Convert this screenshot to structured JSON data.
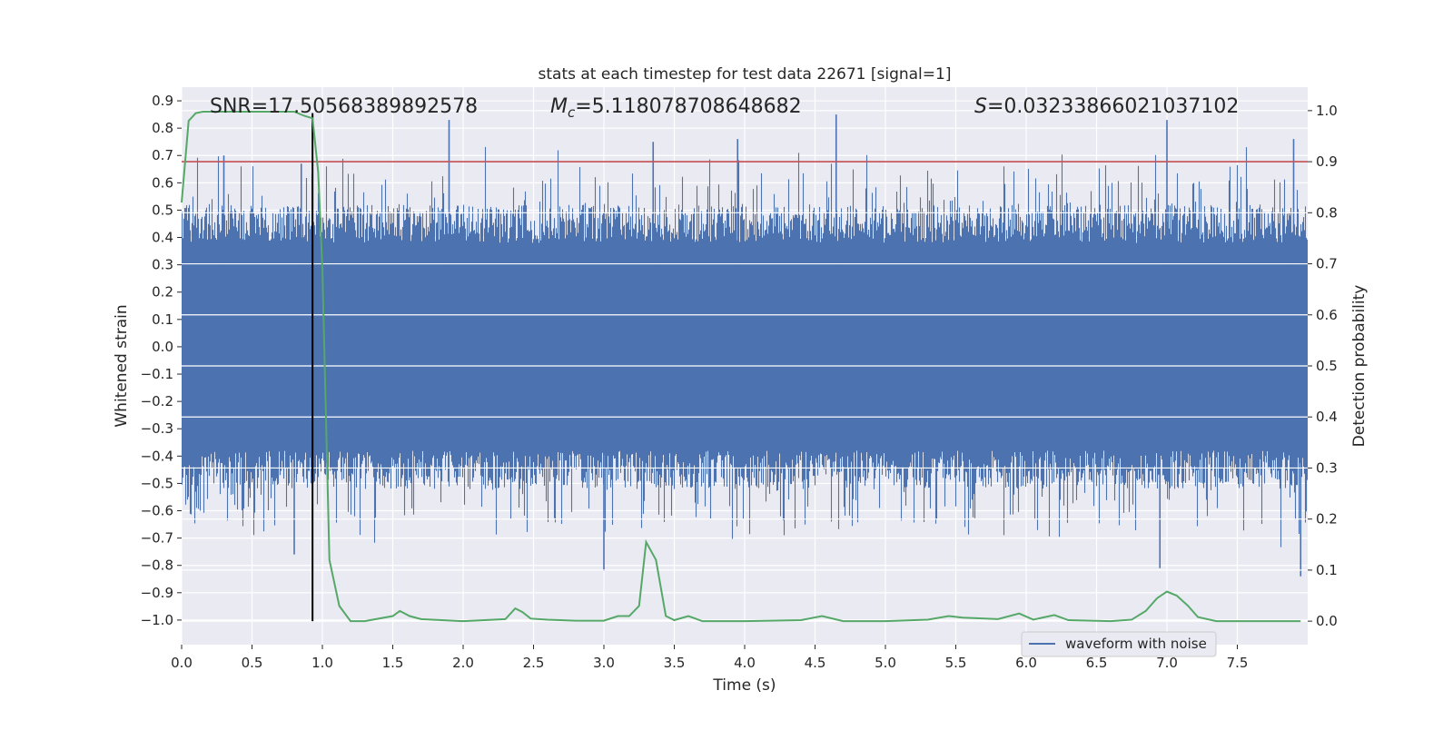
{
  "chart_data": {
    "type": "line",
    "title": "stats at each timestep for test data 22671 [signal=1]",
    "xlabel": "Time (s)",
    "ylabel_left": "Whitened strain",
    "ylabel_right": "Detection probability",
    "xlim": [
      0.0,
      8.0
    ],
    "ylim_left": [
      -1.09,
      0.95
    ],
    "ylim_right": [
      -0.046,
      1.046
    ],
    "x_ticks": [
      "0.0",
      "0.5",
      "1.0",
      "1.5",
      "2.0",
      "2.5",
      "3.0",
      "3.5",
      "4.0",
      "4.5",
      "5.0",
      "5.5",
      "6.0",
      "6.5",
      "7.0",
      "7.5"
    ],
    "y_ticks_left": [
      "0.9",
      "0.8",
      "0.7",
      "0.6",
      "0.5",
      "0.4",
      "0.3",
      "0.2",
      "0.1",
      "0.0",
      "−0.1",
      "−0.2",
      "−0.3",
      "−0.4",
      "−0.5",
      "−0.6",
      "−0.7",
      "−0.8",
      "−0.9",
      "−1.0"
    ],
    "y_ticks_right": [
      "1.0",
      "0.9",
      "0.8",
      "0.7",
      "0.6",
      "0.5",
      "0.4",
      "0.3",
      "0.2",
      "0.1",
      "0.0"
    ],
    "grid": true,
    "annotations": {
      "snr": "SNR=17.50568389892578",
      "mc_symbol": "M",
      "mc_sub": "c",
      "mc_value": "=5.118078708648682",
      "s_symbol": "S",
      "s_value": "=0.03233866021037102"
    },
    "threshold_right": 0.9,
    "threshold_color": "#c44e52",
    "marker_time": 0.93,
    "marker_color": "#000000",
    "waveform": {
      "name": "waveform with noise",
      "color": "#4c72b0",
      "envelope_typical": 0.38,
      "notable_spikes": [
        {
          "t": 0.3,
          "v": 0.7
        },
        {
          "t": 0.85,
          "v": 0.67
        },
        {
          "t": 1.9,
          "v": 0.83
        },
        {
          "t": 3.35,
          "v": 0.75
        },
        {
          "t": 3.95,
          "v": 0.76
        },
        {
          "t": 4.65,
          "v": 0.85
        },
        {
          "t": 7.0,
          "v": 0.83
        },
        {
          "t": 7.9,
          "v": 0.76
        },
        {
          "t": 0.8,
          "v": -0.76
        },
        {
          "t": 3.0,
          "v": -0.82
        },
        {
          "t": 6.95,
          "v": -0.81
        },
        {
          "t": 7.95,
          "v": -0.84
        }
      ]
    },
    "probability": {
      "name": "detection probability",
      "color": "#55a868",
      "x": [
        0.0,
        0.05,
        0.1,
        0.15,
        0.5,
        0.8,
        0.87,
        0.93,
        0.97,
        1.0,
        1.05,
        1.12,
        1.2,
        1.3,
        1.5,
        1.55,
        1.62,
        1.7,
        2.0,
        2.3,
        2.37,
        2.42,
        2.48,
        2.6,
        2.8,
        3.0,
        3.1,
        3.18,
        3.25,
        3.3,
        3.37,
        3.44,
        3.5,
        3.6,
        3.7,
        3.8,
        4.0,
        4.4,
        4.55,
        4.7,
        5.0,
        5.3,
        5.45,
        5.55,
        5.8,
        5.95,
        6.05,
        6.2,
        6.3,
        6.6,
        6.75,
        6.85,
        6.93,
        7.0,
        7.07,
        7.15,
        7.22,
        7.35,
        7.6,
        7.95
      ],
      "values": [
        0.82,
        0.98,
        0.995,
        0.998,
        0.998,
        0.998,
        0.99,
        0.985,
        0.88,
        0.69,
        0.12,
        0.03,
        0.0,
        0.0,
        0.01,
        0.02,
        0.01,
        0.004,
        0.0,
        0.004,
        0.025,
        0.018,
        0.005,
        0.003,
        0.001,
        0.001,
        0.01,
        0.01,
        0.03,
        0.155,
        0.12,
        0.01,
        0.002,
        0.01,
        0.0,
        0.0,
        0.0,
        0.002,
        0.01,
        0.0,
        0.0,
        0.003,
        0.01,
        0.007,
        0.004,
        0.015,
        0.003,
        0.012,
        0.002,
        0.0,
        0.003,
        0.02,
        0.045,
        0.058,
        0.05,
        0.03,
        0.008,
        0.0,
        0.0,
        0.0
      ]
    },
    "legend": {
      "label": "waveform with noise",
      "placement": "lower-right"
    }
  }
}
